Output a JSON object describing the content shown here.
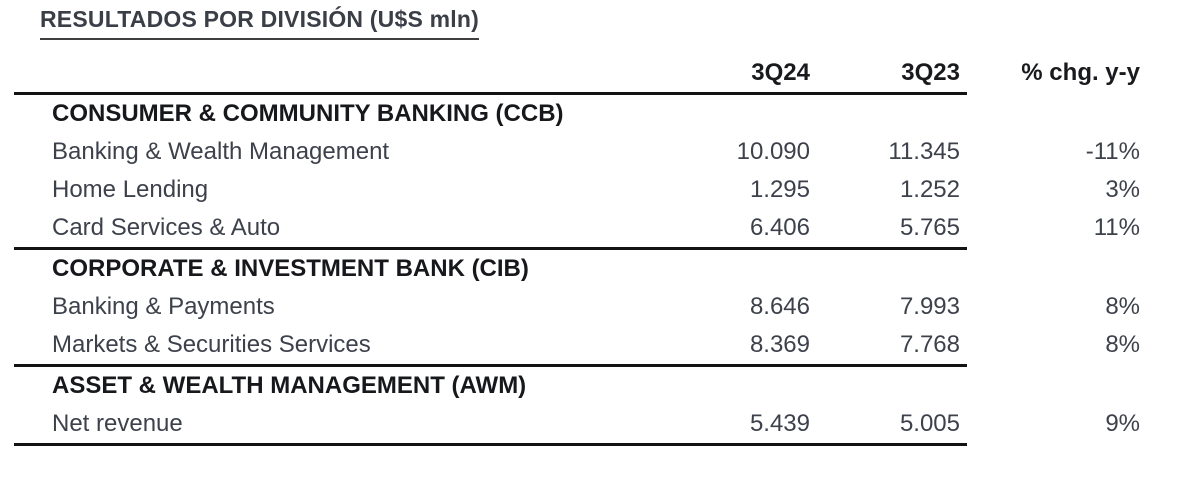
{
  "chart_data": {
    "type": "table",
    "title": "RESULTADOS POR DIVISIÓN (U$S mln)",
    "columns": [
      "3Q24",
      "3Q23",
      "% chg. y-y"
    ],
    "sections": [
      {
        "header": "CONSUMER & COMMUNITY BANKING (CCB)",
        "rows": [
          {
            "label": "Banking & Wealth Management",
            "q24": "10.090",
            "q23": "11.345",
            "chg": "-11%"
          },
          {
            "label": "Home Lending",
            "q24": "1.295",
            "q23": "1.252",
            "chg": "3%"
          },
          {
            "label": "Card Services & Auto",
            "q24": "6.406",
            "q23": "5.765",
            "chg": "11%"
          }
        ]
      },
      {
        "header": "CORPORATE & INVESTMENT BANK (CIB)",
        "rows": [
          {
            "label": "Banking & Payments",
            "q24": "8.646",
            "q23": "7.993",
            "chg": "8%"
          },
          {
            "label": "Markets & Securities Services",
            "q24": "8.369",
            "q23": "7.768",
            "chg": "8%"
          }
        ]
      },
      {
        "header": "ASSET & WEALTH MANAGEMENT (AWM)",
        "rows": [
          {
            "label": "Net revenue",
            "q24": "5.439",
            "q23": "5.005",
            "chg": "9%"
          }
        ]
      }
    ],
    "colors": {
      "background": "#ffffff",
      "body_text": "#3d414b",
      "bold_text": "#17181c",
      "rule": "#131313"
    }
  }
}
